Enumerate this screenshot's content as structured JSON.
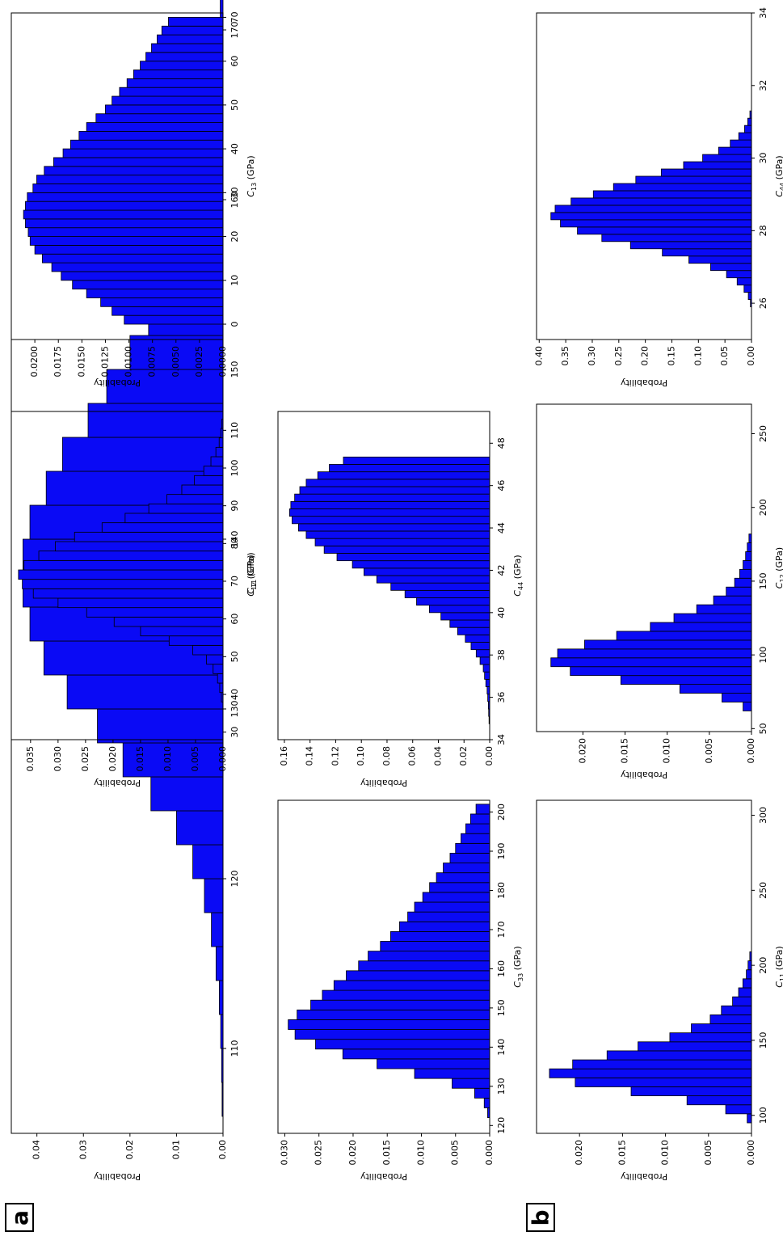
{
  "panel_labels": [
    "a",
    "b"
  ],
  "colors": {
    "bar_fill": "#0a0af5",
    "bar_edge": "#000000",
    "axis": "#000000"
  },
  "chart_data": [
    {
      "id": "a1",
      "type": "bar",
      "xlabel": "C11 (GPa)",
      "ylabel": "Probability",
      "xlim": [
        105,
        171
      ],
      "ylim": [
        0,
        0.0455
      ],
      "xticks": [
        "110",
        "120",
        "130",
        "140",
        "150",
        "160",
        "170"
      ],
      "yticks": [
        "0.00",
        "0.01",
        "0.02",
        "0.03",
        "0.04"
      ],
      "bin_start": 106,
      "bin_width": 2,
      "values": [
        0.0002,
        0.0003,
        0.0005,
        0.0008,
        0.0015,
        0.0025,
        0.004,
        0.0065,
        0.01,
        0.0155,
        0.0215,
        0.027,
        0.0335,
        0.0385,
        0.0415,
        0.043,
        0.043,
        0.0415,
        0.038,
        0.0345,
        0.029,
        0.025,
        0.02,
        0.016,
        0.013,
        0.0095,
        0.007,
        0.005,
        0.0035,
        0.0025,
        0.0015,
        0.001,
        0.0006
      ]
    },
    {
      "id": "a2",
      "type": "bar",
      "xlabel": "C12 (GPa)",
      "ylabel": "Probability",
      "xlim": [
        28,
        115
      ],
      "ylim": [
        0,
        0.0385
      ],
      "xticks": [
        "30",
        "40",
        "50",
        "60",
        "70",
        "80",
        "90",
        "100",
        "110"
      ],
      "yticks": [
        "0.000",
        "0.005",
        "0.010",
        "0.015",
        "0.020",
        "0.025",
        "0.030",
        "0.035"
      ],
      "bin_start": 38,
      "bin_width": 2.5,
      "values": [
        0.0003,
        0.0006,
        0.001,
        0.0018,
        0.003,
        0.0055,
        0.0098,
        0.015,
        0.0198,
        0.0248,
        0.03,
        0.0345,
        0.0365,
        0.0372,
        0.0362,
        0.0335,
        0.0305,
        0.027,
        0.022,
        0.0178,
        0.0135,
        0.0102,
        0.0075,
        0.0052,
        0.0035,
        0.0022,
        0.0013,
        0.0007,
        0.0004,
        0.0002
      ]
    },
    {
      "id": "a3",
      "type": "bar",
      "xlabel": "C13 (GPa)",
      "ylabel": "Probability",
      "xlim": [
        -3.5,
        71
      ],
      "ylim": [
        0,
        0.0225
      ],
      "xticks": [
        "0",
        "10",
        "20",
        "30",
        "40",
        "50",
        "60",
        "70"
      ],
      "yticks": [
        "0.0000",
        "0.0025",
        "0.0050",
        "0.0075",
        "0.0100",
        "0.0125",
        "0.0150",
        "0.0175",
        "0.0200"
      ],
      "bin_start": 0,
      "bin_width": 2,
      "values": [
        0.0105,
        0.0118,
        0.013,
        0.0145,
        0.016,
        0.0172,
        0.0182,
        0.0192,
        0.02,
        0.0205,
        0.0207,
        0.021,
        0.0212,
        0.021,
        0.0208,
        0.0202,
        0.0198,
        0.019,
        0.018,
        0.017,
        0.0162,
        0.0153,
        0.0145,
        0.0135,
        0.0125,
        0.0118,
        0.011,
        0.0102,
        0.0095,
        0.0088,
        0.0082,
        0.0076,
        0.007,
        0.0065,
        0.0058
      ]
    },
    {
      "id": "a4",
      "type": "bar",
      "xlabel": "C33 (GPa)",
      "ylabel": "Probability",
      "xlim": [
        118,
        203
      ],
      "ylim": [
        0,
        0.031
      ],
      "xticks": [
        "120",
        "130",
        "140",
        "150",
        "160",
        "170",
        "180",
        "190",
        "200"
      ],
      "yticks": [
        "0.000",
        "0.005",
        "0.010",
        "0.015",
        "0.020",
        "0.025",
        "0.030"
      ],
      "bin_start": 122,
      "bin_width": 2.5,
      "values": [
        0.0003,
        0.0008,
        0.0022,
        0.0055,
        0.011,
        0.0165,
        0.0215,
        0.0255,
        0.0285,
        0.0295,
        0.0282,
        0.0262,
        0.0245,
        0.0228,
        0.021,
        0.0192,
        0.0178,
        0.016,
        0.0145,
        0.0132,
        0.012,
        0.011,
        0.0098,
        0.0088,
        0.0078,
        0.0068,
        0.0058,
        0.005,
        0.0042,
        0.0035,
        0.0028,
        0.002
      ]
    },
    {
      "id": "a5",
      "type": "bar",
      "xlabel": "C44 (GPa)",
      "ylabel": "Probability",
      "xlim": [
        34,
        49.5
      ],
      "ylim": [
        0,
        0.165
      ],
      "xticks": [
        "34",
        "36",
        "38",
        "40",
        "42",
        "44",
        "46",
        "48"
      ],
      "yticks": [
        "0.00",
        "0.02",
        "0.04",
        "0.06",
        "0.08",
        "0.10",
        "0.12",
        "0.14",
        "0.16"
      ],
      "bin_start": 34.75,
      "bin_width": 0.35,
      "values": [
        0.0005,
        0.0008,
        0.001,
        0.0015,
        0.002,
        0.003,
        0.004,
        0.005,
        0.0075,
        0.0105,
        0.0145,
        0.019,
        0.025,
        0.031,
        0.038,
        0.047,
        0.057,
        0.066,
        0.077,
        0.088,
        0.098,
        0.107,
        0.119,
        0.129,
        0.136,
        0.143,
        0.149,
        0.154,
        0.156,
        0.155,
        0.152,
        0.148,
        0.143,
        0.134,
        0.125,
        0.114
      ]
    },
    {
      "id": "b1",
      "type": "bar",
      "xlabel": "C11 (GPa)",
      "ylabel": "Probability",
      "xlim": [
        88,
        310
      ],
      "ylim": [
        0,
        0.025
      ],
      "xticks": [
        "100",
        "150",
        "200",
        "250",
        "300"
      ],
      "yticks": [
        "0.000",
        "0.005",
        "0.010",
        "0.015",
        "0.020"
      ],
      "bin_start": 95,
      "bin_width": 6,
      "values": [
        0.0005,
        0.003,
        0.0075,
        0.014,
        0.0205,
        0.0235,
        0.0208,
        0.0168,
        0.0132,
        0.0095,
        0.007,
        0.0048,
        0.0035,
        0.0022,
        0.0015,
        0.001,
        0.0006,
        0.0004,
        0.0002
      ]
    },
    {
      "id": "b2",
      "type": "bar",
      "xlabel": "C12 (GPa)",
      "ylabel": "Probability",
      "xlim": [
        48,
        270
      ],
      "ylim": [
        0,
        0.0255
      ],
      "xticks": [
        "50",
        "100",
        "150",
        "200",
        "250"
      ],
      "yticks": [
        "0.000",
        "0.005",
        "0.010",
        "0.015",
        "0.020"
      ],
      "bin_start": 62,
      "bin_width": 6,
      "values": [
        0.001,
        0.0035,
        0.0085,
        0.0155,
        0.0215,
        0.0238,
        0.023,
        0.0198,
        0.016,
        0.012,
        0.0092,
        0.0065,
        0.0045,
        0.003,
        0.002,
        0.0014,
        0.001,
        0.0007,
        0.0005,
        0.0003
      ]
    },
    {
      "id": "b3",
      "type": "bar",
      "xlabel": "C44 (GPa)",
      "ylabel": "Probability",
      "xlim": [
        25,
        34
      ],
      "ylim": [
        0,
        0.405
      ],
      "xticks": [
        "26",
        "28",
        "30",
        "32",
        "34"
      ],
      "yticks": [
        "0.00",
        "0.05",
        "0.10",
        "0.15",
        "0.20",
        "0.25",
        "0.30",
        "0.35",
        "0.40"
      ],
      "bin_start": 25.9,
      "bin_width": 0.2,
      "values": [
        0.002,
        0.006,
        0.014,
        0.027,
        0.047,
        0.077,
        0.118,
        0.168,
        0.228,
        0.282,
        0.328,
        0.36,
        0.378,
        0.37,
        0.34,
        0.298,
        0.26,
        0.218,
        0.17,
        0.128,
        0.092,
        0.062,
        0.04,
        0.024,
        0.013,
        0.007,
        0.003
      ]
    }
  ]
}
